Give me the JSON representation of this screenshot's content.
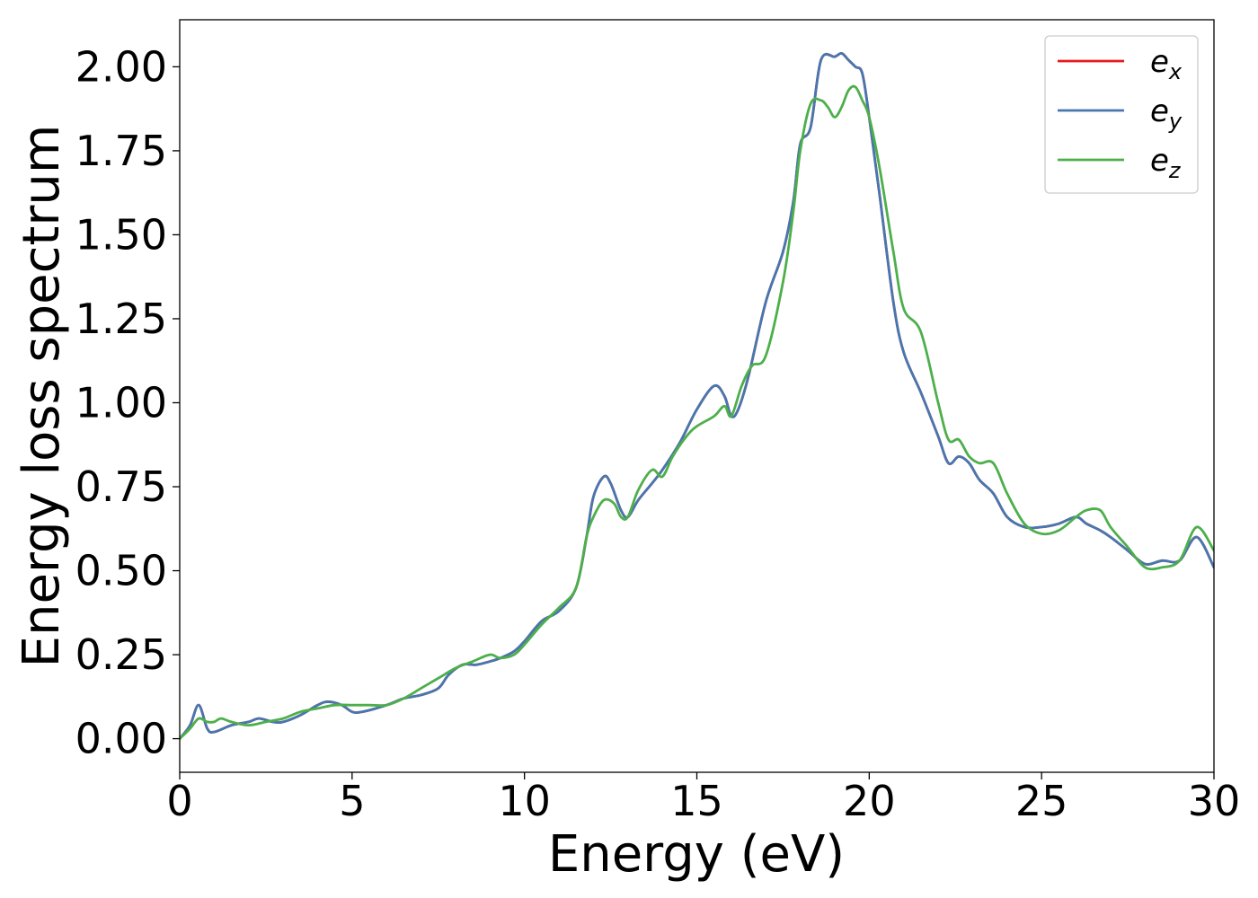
{
  "chart_data": {
    "type": "line",
    "title": "",
    "xlabel": "Energy (eV)",
    "ylabel": "Energy loss spectrum",
    "xlim": [
      0,
      30
    ],
    "ylim": [
      -0.1,
      2.14
    ],
    "xticks": [
      0,
      5,
      10,
      15,
      20,
      25,
      30
    ],
    "xtick_labels": [
      "0",
      "5",
      "10",
      "15",
      "20",
      "25",
      "30"
    ],
    "yticks": [
      0,
      0.25,
      0.5,
      0.75,
      1.0,
      1.25,
      1.5,
      1.75,
      2.0
    ],
    "ytick_labels": [
      "0.00",
      "0.25",
      "0.50",
      "0.75",
      "1.00",
      "1.25",
      "1.50",
      "1.75",
      "2.00"
    ],
    "grid": false,
    "legend_position": "top-right",
    "series": [
      {
        "name": "e_x",
        "label_base": "e",
        "label_sub": "x",
        "color": "#e41a1c",
        "x": [
          0,
          0.3,
          0.55,
          0.8,
          1.0,
          1.5,
          2.0,
          2.3,
          2.7,
          3.0,
          3.5,
          4.0,
          4.3,
          4.7,
          5.0,
          5.3,
          6.0,
          6.5,
          7.0,
          7.5,
          7.8,
          8.2,
          8.6,
          9.0,
          9.3,
          9.7,
          10.0,
          10.5,
          11.0,
          11.5,
          11.8,
          12.0,
          12.3,
          12.5,
          12.8,
          13.0,
          13.3,
          13.7,
          14.0,
          14.5,
          15.0,
          15.5,
          15.8,
          16.0,
          16.2,
          16.5,
          17.0,
          17.5,
          17.8,
          18.0,
          18.3,
          18.6,
          19.0,
          19.2,
          19.4,
          19.6,
          19.8,
          20.0,
          20.3,
          20.7,
          21.0,
          21.5,
          22.0,
          22.3,
          22.6,
          22.9,
          23.2,
          23.6,
          24.0,
          24.5,
          25.0,
          25.5,
          26.0,
          26.3,
          26.7,
          27.0,
          27.5,
          28.0,
          28.5,
          29.0,
          29.5,
          30.0
        ],
        "y": [
          0.0,
          0.04,
          0.1,
          0.03,
          0.02,
          0.04,
          0.05,
          0.06,
          0.05,
          0.05,
          0.07,
          0.1,
          0.11,
          0.1,
          0.08,
          0.08,
          0.1,
          0.12,
          0.13,
          0.15,
          0.19,
          0.22,
          0.22,
          0.23,
          0.24,
          0.26,
          0.29,
          0.35,
          0.38,
          0.45,
          0.6,
          0.72,
          0.78,
          0.76,
          0.68,
          0.66,
          0.71,
          0.76,
          0.8,
          0.88,
          0.98,
          1.05,
          1.02,
          0.96,
          0.98,
          1.08,
          1.3,
          1.45,
          1.6,
          1.77,
          1.82,
          2.02,
          2.03,
          2.04,
          2.02,
          2.0,
          1.98,
          1.85,
          1.62,
          1.3,
          1.15,
          1.03,
          0.9,
          0.82,
          0.84,
          0.82,
          0.77,
          0.73,
          0.66,
          0.63,
          0.63,
          0.64,
          0.66,
          0.64,
          0.62,
          0.6,
          0.56,
          0.52,
          0.53,
          0.53,
          0.6,
          0.51
        ]
      },
      {
        "name": "e_y",
        "label_base": "e",
        "label_sub": "y",
        "color": "#4677b0",
        "x": [
          0,
          0.3,
          0.55,
          0.8,
          1.0,
          1.5,
          2.0,
          2.3,
          2.7,
          3.0,
          3.5,
          4.0,
          4.3,
          4.7,
          5.0,
          5.3,
          6.0,
          6.5,
          7.0,
          7.5,
          7.8,
          8.2,
          8.6,
          9.0,
          9.3,
          9.7,
          10.0,
          10.5,
          11.0,
          11.5,
          11.8,
          12.0,
          12.3,
          12.5,
          12.8,
          13.0,
          13.3,
          13.7,
          14.0,
          14.5,
          15.0,
          15.5,
          15.8,
          16.0,
          16.2,
          16.5,
          17.0,
          17.5,
          17.8,
          18.0,
          18.3,
          18.6,
          19.0,
          19.2,
          19.4,
          19.6,
          19.8,
          20.0,
          20.3,
          20.7,
          21.0,
          21.5,
          22.0,
          22.3,
          22.6,
          22.9,
          23.2,
          23.6,
          24.0,
          24.5,
          25.0,
          25.5,
          26.0,
          26.3,
          26.7,
          27.0,
          27.5,
          28.0,
          28.5,
          29.0,
          29.5,
          30.0
        ],
        "y": [
          0.0,
          0.04,
          0.1,
          0.03,
          0.02,
          0.04,
          0.05,
          0.06,
          0.05,
          0.05,
          0.07,
          0.1,
          0.11,
          0.1,
          0.08,
          0.08,
          0.1,
          0.12,
          0.13,
          0.15,
          0.19,
          0.22,
          0.22,
          0.23,
          0.24,
          0.26,
          0.29,
          0.35,
          0.38,
          0.45,
          0.6,
          0.72,
          0.78,
          0.76,
          0.68,
          0.66,
          0.71,
          0.76,
          0.8,
          0.88,
          0.98,
          1.05,
          1.02,
          0.96,
          0.98,
          1.08,
          1.3,
          1.45,
          1.6,
          1.77,
          1.82,
          2.02,
          2.03,
          2.04,
          2.02,
          2.0,
          1.98,
          1.85,
          1.62,
          1.3,
          1.15,
          1.03,
          0.9,
          0.82,
          0.84,
          0.82,
          0.77,
          0.73,
          0.66,
          0.63,
          0.63,
          0.64,
          0.66,
          0.64,
          0.62,
          0.6,
          0.56,
          0.52,
          0.53,
          0.53,
          0.6,
          0.51
        ]
      },
      {
        "name": "e_z",
        "label_base": "e",
        "label_sub": "z",
        "color": "#4daf4a",
        "x": [
          0,
          0.3,
          0.55,
          0.8,
          1.0,
          1.2,
          1.5,
          2.0,
          2.5,
          3.0,
          3.5,
          4.0,
          4.5,
          5.0,
          5.5,
          6.0,
          6.5,
          7.0,
          7.5,
          8.0,
          8.5,
          9.0,
          9.3,
          9.7,
          10.0,
          10.5,
          11.0,
          11.5,
          11.8,
          12.0,
          12.3,
          12.6,
          12.8,
          13.0,
          13.3,
          13.7,
          14.0,
          14.3,
          14.7,
          15.0,
          15.5,
          15.8,
          16.0,
          16.3,
          16.6,
          17.0,
          17.5,
          17.8,
          18.0,
          18.3,
          18.6,
          18.8,
          19.0,
          19.2,
          19.4,
          19.6,
          19.8,
          20.0,
          20.3,
          20.7,
          21.0,
          21.5,
          22.0,
          22.3,
          22.6,
          22.9,
          23.2,
          23.6,
          24.0,
          24.5,
          25.0,
          25.5,
          26.0,
          26.3,
          26.7,
          27.0,
          27.5,
          28.0,
          28.5,
          29.0,
          29.5,
          30.0
        ],
        "y": [
          0.0,
          0.03,
          0.06,
          0.05,
          0.05,
          0.06,
          0.05,
          0.04,
          0.05,
          0.06,
          0.08,
          0.09,
          0.1,
          0.1,
          0.1,
          0.1,
          0.12,
          0.15,
          0.18,
          0.21,
          0.23,
          0.25,
          0.24,
          0.25,
          0.28,
          0.34,
          0.39,
          0.45,
          0.6,
          0.66,
          0.71,
          0.7,
          0.66,
          0.66,
          0.74,
          0.8,
          0.78,
          0.84,
          0.9,
          0.93,
          0.96,
          0.99,
          0.96,
          1.05,
          1.11,
          1.14,
          1.36,
          1.57,
          1.75,
          1.89,
          1.9,
          1.88,
          1.85,
          1.88,
          1.93,
          1.94,
          1.9,
          1.85,
          1.7,
          1.45,
          1.28,
          1.21,
          1.0,
          0.89,
          0.89,
          0.84,
          0.82,
          0.82,
          0.73,
          0.64,
          0.61,
          0.62,
          0.66,
          0.68,
          0.68,
          0.63,
          0.57,
          0.51,
          0.51,
          0.53,
          0.63,
          0.56
        ]
      }
    ]
  }
}
